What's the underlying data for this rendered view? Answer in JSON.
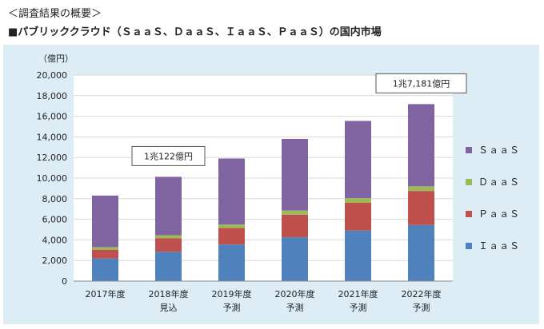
{
  "heading": {
    "section": "＜調査結果の概要＞",
    "title": "■パブリッククラウド（ＳａａＳ、ＤａａＳ、ＩａａＳ、ＰａａＳ）の国内市場"
  },
  "chart_data": {
    "type": "stacked-bar",
    "ylabel": "（億円）",
    "ylim": [
      0,
      20000
    ],
    "yticks": [
      0,
      2000,
      4000,
      6000,
      8000,
      10000,
      12000,
      14000,
      16000,
      18000,
      20000
    ],
    "ytick_labels": [
      "0",
      "2,000",
      "4,000",
      "6,000",
      "8,000",
      "10,000",
      "12,000",
      "14,000",
      "16,000",
      "18,000",
      "20,000"
    ],
    "categories": [
      [
        "2017年度"
      ],
      [
        "2018年度",
        "見込"
      ],
      [
        "2019年度",
        "予測"
      ],
      [
        "2020年度",
        "予測"
      ],
      [
        "2021年度",
        "予測"
      ],
      [
        "2022年度",
        "予測"
      ]
    ],
    "series": [
      {
        "name": "ＩａａＳ",
        "color": "#4f81bd",
        "values": [
          2200,
          2850,
          3550,
          4250,
          4900,
          5450
        ]
      },
      {
        "name": "ＰａａＳ",
        "color": "#c0504d",
        "values": [
          850,
          1300,
          1600,
          2200,
          2700,
          3300
        ]
      },
      {
        "name": "ＤａａＳ",
        "color": "#9bbb59",
        "values": [
          250,
          300,
          350,
          400,
          450,
          450
        ]
      },
      {
        "name": "ＳａａＳ",
        "color": "#8064a2",
        "values": [
          5000,
          5672,
          6400,
          6950,
          7500,
          7981
        ]
      }
    ],
    "legend_order": [
      "ＳａａＳ",
      "ＤａａＳ",
      "ＰａａＳ",
      "ＩａａＳ"
    ],
    "annotations": [
      {
        "text": "1兆122億円",
        "category_index": 1,
        "value": 10122
      },
      {
        "text": "1兆7,181億円",
        "category_index": 5,
        "value": 17181
      }
    ]
  }
}
